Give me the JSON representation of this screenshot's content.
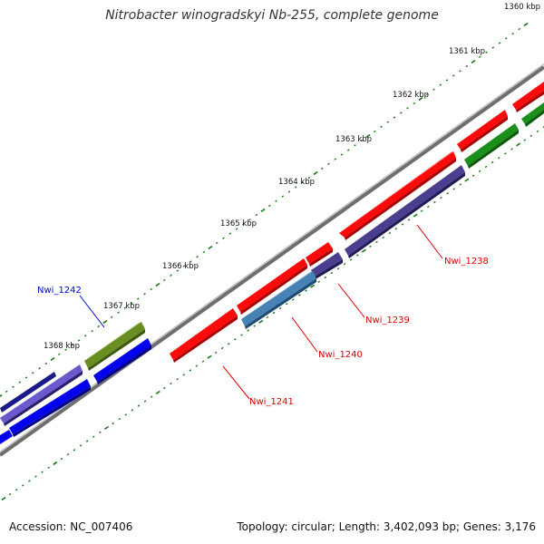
{
  "title": "Nitrobacter winogradskyi Nb-255, complete genome",
  "footer": {
    "accession": "Accession: NC_007406",
    "summary": "Topology: circular; Length: 3,402,093 bp; Genes: 3,176"
  },
  "ticks": [
    {
      "label": "1360 kbp"
    },
    {
      "label": "1361 kbp"
    },
    {
      "label": "1362 kbp"
    },
    {
      "label": "1363 kbp"
    },
    {
      "label": "1364 kbp"
    },
    {
      "label": "1365 kbp"
    },
    {
      "label": "1366 kbp"
    },
    {
      "label": "1367 kbp"
    },
    {
      "label": "1368 kbp"
    }
  ],
  "gene_labels": [
    {
      "id": "Nwi_1238",
      "color": "#e00000"
    },
    {
      "id": "Nwi_1239",
      "color": "#e00000"
    },
    {
      "id": "Nwi_1240",
      "color": "#e00000"
    },
    {
      "id": "Nwi_1241",
      "color": "#e00000"
    },
    {
      "id": "Nwi_1242",
      "color": "#0000dd"
    }
  ],
  "colors": {
    "red": "#ff0a0a",
    "blue": "#0000ee",
    "purple": "#4a3f8f",
    "lilac": "#6a5acd",
    "steelblue": "#4682b4",
    "olive": "#6b8e23",
    "green": "#1a8f1a",
    "backbone": "#808080",
    "tick": "#1a7a1a"
  }
}
